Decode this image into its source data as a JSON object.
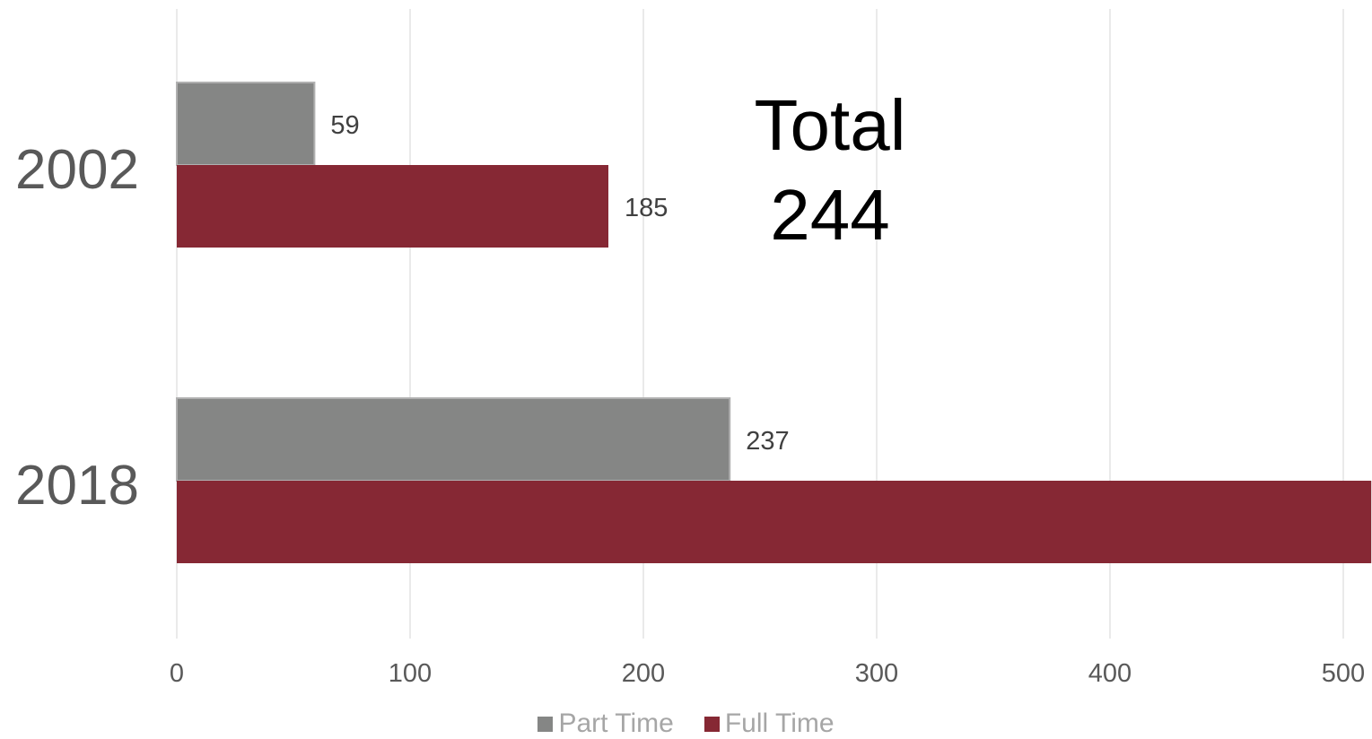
{
  "chart_data": {
    "type": "bar",
    "orientation": "horizontal",
    "categories": [
      "2002",
      "2018"
    ],
    "series": [
      {
        "name": "Part Time",
        "color": "#858685",
        "values": [
          59,
          237
        ]
      },
      {
        "name": "Full Time",
        "color": "#862834",
        "values": [
          185,
          512
        ]
      }
    ],
    "data_labels": {
      "Part Time": [
        "59",
        "237"
      ],
      "Full Time": [
        "185",
        ""
      ]
    },
    "x_ticks": [
      "0",
      "100",
      "200",
      "300",
      "400",
      "500"
    ],
    "xlim": [
      0,
      512
    ],
    "grid": true,
    "legend_position": "bottom",
    "annotation": {
      "line1": "Total",
      "line2": "244"
    }
  }
}
